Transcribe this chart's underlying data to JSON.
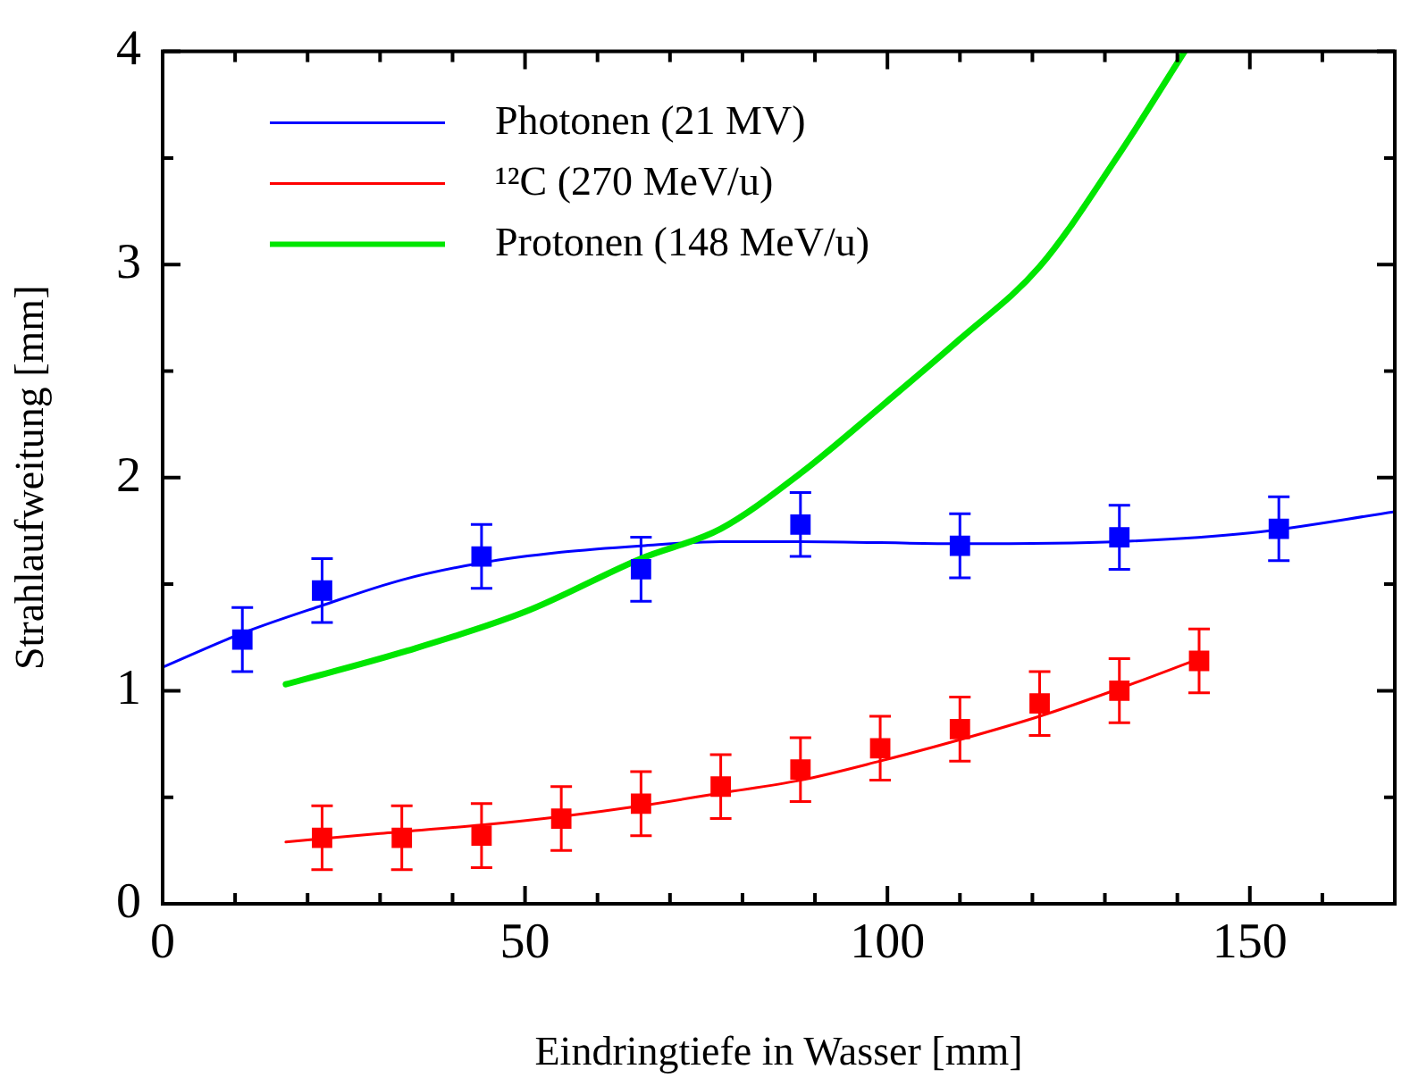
{
  "chart_data": {
    "type": "scatter",
    "xlabel": "Eindringtiefe in Wasser [mm]",
    "ylabel": "Strahlaufweitung [mm]",
    "xlim": [
      0,
      170
    ],
    "xticks": [
      0,
      {
        "value": 10,
        "label": null
      },
      {
        "value": 20,
        "label": null
      },
      {
        "value": 30,
        "label": null
      },
      {
        "value": 40,
        "label": null
      },
      50,
      {
        "value": 60,
        "label": null
      },
      {
        "value": 70,
        "label": null
      },
      {
        "value": 80,
        "label": null
      },
      {
        "value": 90,
        "label": null
      },
      100,
      {
        "value": 110,
        "label": null
      },
      {
        "value": 120,
        "label": null
      },
      {
        "value": 130,
        "label": null
      },
      {
        "value": 140,
        "label": null
      },
      150,
      {
        "value": 160,
        "label": null
      }
    ],
    "ylim": [
      0,
      4
    ],
    "yticks": [
      0,
      {
        "value": 0.5,
        "label": null
      },
      1,
      {
        "value": 1.5,
        "label": null
      },
      2,
      {
        "value": 2.5,
        "label": null
      },
      3,
      {
        "value": 3.5,
        "label": null
      },
      4
    ],
    "grid": false,
    "legend": "top left",
    "line_style": "solid",
    "series": [
      {
        "name": "Photonen (21 MV)",
        "type": "scatter",
        "marker": "square",
        "color": "#0000ff",
        "x": [
          11,
          22,
          44,
          66,
          88,
          110,
          132,
          154
        ],
        "values": [
          1.24,
          1.47,
          1.63,
          1.57,
          1.78,
          1.68,
          1.72,
          1.76
        ],
        "errors": [
          0.15,
          0.15,
          0.15,
          0.15,
          0.15,
          0.15,
          0.15,
          0.15
        ]
      },
      {
        "name": "¹²C (270 MeV/u)",
        "type": "scatter",
        "marker": "square",
        "color": "#ff0000",
        "x": [
          22,
          33,
          44,
          55,
          66,
          77,
          88,
          99,
          110,
          121,
          132,
          143
        ],
        "values": [
          0.31,
          0.31,
          0.32,
          0.4,
          0.47,
          0.55,
          0.63,
          0.73,
          0.82,
          0.94,
          1.0,
          1.14
        ],
        "errors": [
          0.15,
          0.15,
          0.15,
          0.15,
          0.15,
          0.15,
          0.15,
          0.15,
          0.15,
          0.15,
          0.15,
          0.15
        ]
      },
      {
        "name": "Protonen (148 MeV/u)",
        "type": "line",
        "marker": "none",
        "color": "#00e600",
        "x": [
          17,
          33,
          50,
          66,
          77,
          88,
          99,
          110,
          121,
          132,
          141
        ],
        "values": [
          1.03,
          1.18,
          1.37,
          1.62,
          1.76,
          2.02,
          2.33,
          2.65,
          2.99,
          3.52,
          4.0
        ]
      },
      {
        "type": "line",
        "marker": "none",
        "color": "#0000ff",
        "x": [
          0,
          11,
          22,
          33,
          44,
          55,
          66,
          77,
          88,
          110,
          132,
          150,
          170
        ],
        "values": [
          1.11,
          1.27,
          1.4,
          1.52,
          1.6,
          1.65,
          1.68,
          1.7,
          1.7,
          1.69,
          1.7,
          1.74,
          1.84
        ]
      },
      {
        "type": "line",
        "marker": "none",
        "color": "#ff0000",
        "x": [
          17,
          30,
          44,
          55,
          66,
          77,
          88,
          99,
          110,
          121,
          132,
          143
        ],
        "values": [
          0.29,
          0.33,
          0.37,
          0.41,
          0.46,
          0.52,
          0.58,
          0.67,
          0.77,
          0.88,
          1.01,
          1.15
        ]
      }
    ]
  }
}
